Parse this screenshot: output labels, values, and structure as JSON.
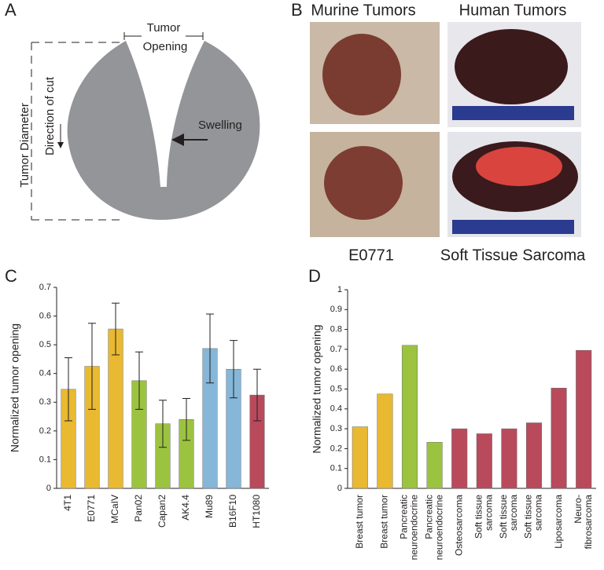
{
  "panel_labels": [
    "A",
    "B",
    "C",
    "D"
  ],
  "diagram": {
    "opening_label": [
      "Tumor",
      "Opening"
    ],
    "diameter_label": "Tumor Diameter",
    "cut_label": "Direction of cut",
    "swelling_label": "Swelling"
  },
  "photos": {
    "murine_title": "Murine Tumors",
    "human_title": "Human Tumors",
    "murine_caption": "E0771",
    "human_caption": "Soft Tissue Sarcoma"
  },
  "chart_data": [
    {
      "type": "bar",
      "ylabel": "Normalized tumor opening",
      "categories": [
        "4T1",
        "E0771",
        "MCaIV",
        "Pan02",
        "Capan2",
        "AK4.4",
        "Mu89",
        "B16F10",
        "HT1080"
      ],
      "values": [
        0.345,
        0.425,
        0.555,
        0.375,
        0.225,
        0.24,
        0.487,
        0.415,
        0.325
      ],
      "errors": [
        0.11,
        0.15,
        0.09,
        0.1,
        0.082,
        0.073,
        0.12,
        0.1,
        0.09
      ],
      "colors": [
        "#e8b931",
        "#e8b931",
        "#e8b931",
        "#9cc33f",
        "#9cc33f",
        "#9cc33f",
        "#86b6d8",
        "#86b6d8",
        "#b84a5c"
      ],
      "ylim": [
        0,
        0.7
      ],
      "yticks": [
        0,
        0.1,
        0.2,
        0.3,
        0.4,
        0.5,
        0.6,
        0.7
      ]
    },
    {
      "type": "bar",
      "ylabel": "Normalized tumor opening",
      "categories": [
        [
          "Breast tumor"
        ],
        [
          "Breast tumor"
        ],
        [
          "Pancreatic",
          "neuroendocrine"
        ],
        [
          "Pancreatic",
          "neuroendocrine"
        ],
        [
          "Osteosarcoma"
        ],
        [
          "Soft  tissue",
          "sarcoma"
        ],
        [
          "Soft  tissue",
          "sarcoma"
        ],
        [
          "Soft  tissue",
          "sarcoma"
        ],
        [
          "Liposarcoma"
        ],
        [
          "Neuro-",
          "fibrosarcoma"
        ]
      ],
      "values": [
        0.31,
        0.475,
        0.72,
        0.232,
        0.3,
        0.275,
        0.3,
        0.33,
        0.505,
        0.695
      ],
      "colors": [
        "#e8b931",
        "#e8b931",
        "#9cc33f",
        "#9cc33f",
        "#b84a5c",
        "#b84a5c",
        "#b84a5c",
        "#b84a5c",
        "#b84a5c",
        "#b84a5c"
      ],
      "ylim": [
        0,
        1
      ],
      "yticks": [
        0,
        0.1,
        0.2,
        0.3,
        0.4,
        0.5,
        0.6,
        0.7,
        0.8,
        0.9,
        1
      ]
    }
  ]
}
